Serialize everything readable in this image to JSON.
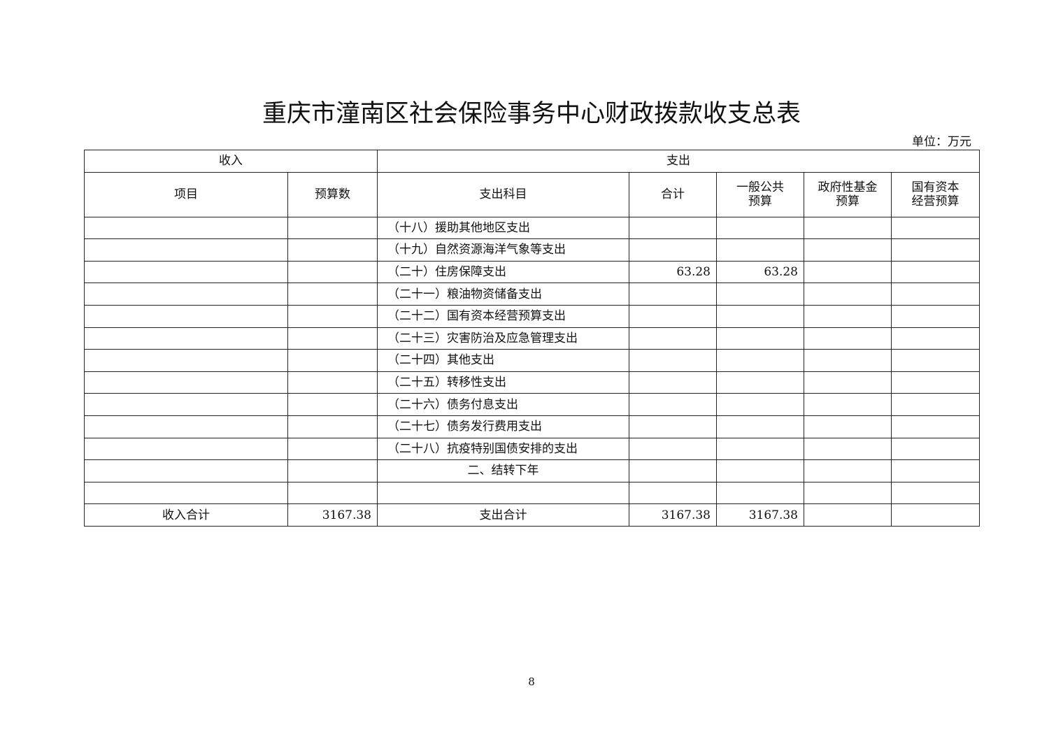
{
  "title": "重庆市潼南区社会保险事务中心财政拨款收支总表",
  "unit": "单位：万元",
  "headers": {
    "income": "收入",
    "expense": "支出",
    "item": "项目",
    "budget": "预算数",
    "expense_subject": "支出科目",
    "total": "合计",
    "general_public": "一般公共\n预算",
    "gov_fund": "政府性基金\n预算",
    "state_capital": "国有资本\n经营预算"
  },
  "rows": [
    {
      "item": "",
      "budget": "",
      "subject": "（十八）援助其他地区支出",
      "total": "",
      "general": "",
      "fund": "",
      "capital": ""
    },
    {
      "item": "",
      "budget": "",
      "subject": "（十九）自然资源海洋气象等支出",
      "total": "",
      "general": "",
      "fund": "",
      "capital": ""
    },
    {
      "item": "",
      "budget": "",
      "subject": "（二十）住房保障支出",
      "total": "63.28",
      "general": "63.28",
      "fund": "",
      "capital": ""
    },
    {
      "item": "",
      "budget": "",
      "subject": "（二十一）粮油物资储备支出",
      "total": "",
      "general": "",
      "fund": "",
      "capital": ""
    },
    {
      "item": "",
      "budget": "",
      "subject": "（二十二）国有资本经营预算支出",
      "total": "",
      "general": "",
      "fund": "",
      "capital": ""
    },
    {
      "item": "",
      "budget": "",
      "subject": "（二十三）灾害防治及应急管理支出",
      "total": "",
      "general": "",
      "fund": "",
      "capital": ""
    },
    {
      "item": "",
      "budget": "",
      "subject": "（二十四）其他支出",
      "total": "",
      "general": "",
      "fund": "",
      "capital": ""
    },
    {
      "item": "",
      "budget": "",
      "subject": "（二十五）转移性支出",
      "total": "",
      "general": "",
      "fund": "",
      "capital": ""
    },
    {
      "item": "",
      "budget": "",
      "subject": "（二十六）债务付息支出",
      "total": "",
      "general": "",
      "fund": "",
      "capital": ""
    },
    {
      "item": "",
      "budget": "",
      "subject": "（二十七）债务发行费用支出",
      "total": "",
      "general": "",
      "fund": "",
      "capital": ""
    },
    {
      "item": "",
      "budget": "",
      "subject": "（二十八）抗疫特别国债安排的支出",
      "total": "",
      "general": "",
      "fund": "",
      "capital": ""
    },
    {
      "item": "",
      "budget": "",
      "subject": "二、结转下年",
      "total": "",
      "general": "",
      "fund": "",
      "capital": "",
      "center": true
    },
    {
      "item": "",
      "budget": "",
      "subject": "",
      "total": "",
      "general": "",
      "fund": "",
      "capital": ""
    }
  ],
  "totals": {
    "income_label": "收入合计",
    "income_value": "3167.38",
    "expense_label": "支出合计",
    "expense_total": "3167.38",
    "expense_general": "3167.38",
    "expense_fund": "",
    "expense_capital": ""
  },
  "page_number": "8"
}
